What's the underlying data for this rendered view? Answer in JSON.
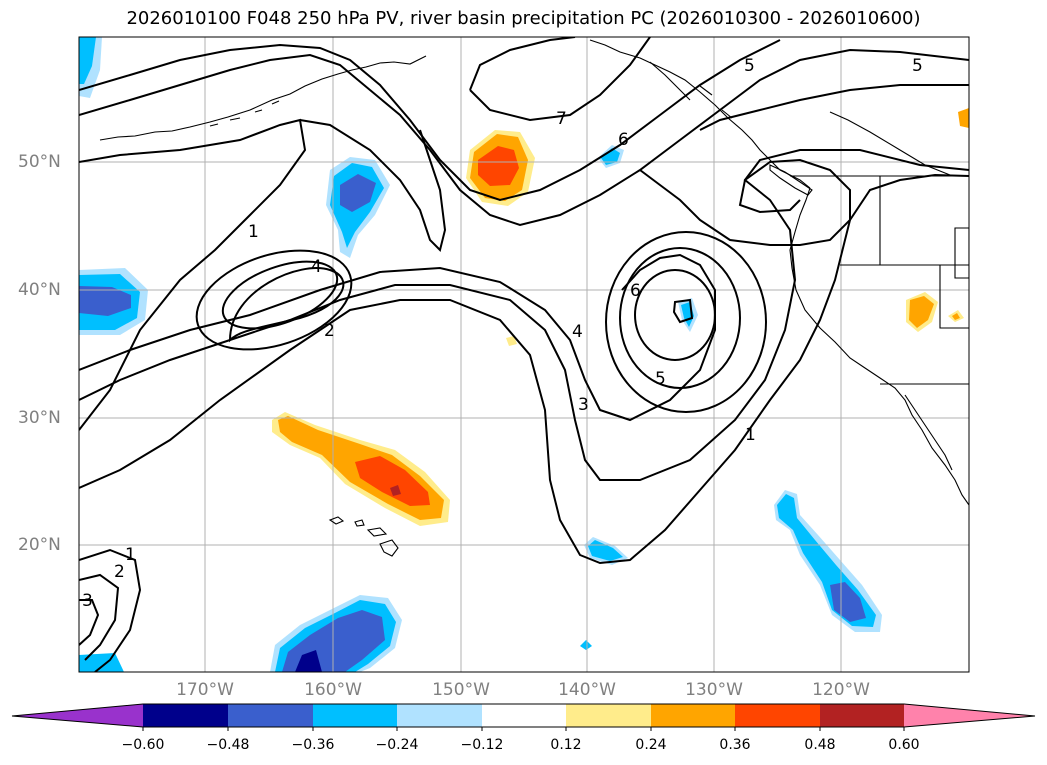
{
  "title": "2026010100 F048 250 hPa PV, river basin precipitation PC (2026010300 - 2026010600)",
  "lat_labels": [
    "50°N",
    "40°N",
    "30°N",
    "20°N"
  ],
  "lon_labels": [
    "170°W",
    "160°W",
    "150°W",
    "140°W",
    "130°W",
    "120°W"
  ],
  "contour_labels": [
    "1",
    "4",
    "2",
    "7",
    "6",
    "5",
    "5",
    "6",
    "4",
    "3",
    "5",
    "1",
    "1",
    "2",
    "3"
  ],
  "colorbar": {
    "ticks": [
      "−0.60",
      "−0.48",
      "−0.36",
      "−0.24",
      "−0.12",
      "0.12",
      "0.24",
      "0.36",
      "0.48",
      "0.60"
    ],
    "colors": [
      "#9932cc",
      "#00008b",
      "#3a5fcd",
      "#00bfff",
      "#b0e2ff",
      "#ffffff",
      "#ffec8b",
      "#ffa500",
      "#ff4500",
      "#b22222",
      "#ff82ab"
    ]
  }
}
